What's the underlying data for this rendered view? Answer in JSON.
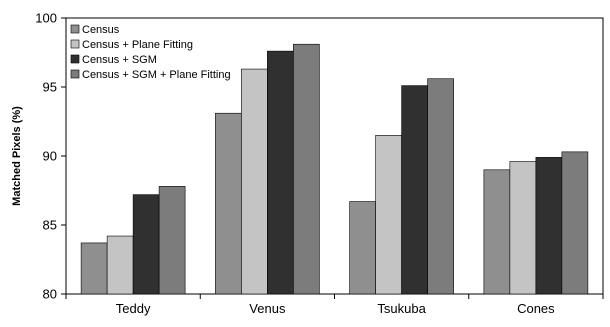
{
  "chart_data": {
    "type": "bar",
    "title": "",
    "xlabel": "",
    "ylabel": "Matched Pixels (%)",
    "ylim": [
      80,
      100
    ],
    "yticks": [
      80,
      85,
      90,
      95,
      100
    ],
    "grid": false,
    "legend_position": "top-left",
    "categories": [
      "Teddy",
      "Venus",
      "Tsukuba",
      "Cones"
    ],
    "series": [
      {
        "name": "Census",
        "color": "#8f8f8f",
        "values": [
          83.7,
          93.1,
          86.7,
          89.0
        ]
      },
      {
        "name": "Census + Plane Fitting",
        "color": "#c4c4c4",
        "values": [
          84.2,
          96.3,
          91.5,
          89.6
        ]
      },
      {
        "name": "Census + SGM",
        "color": "#303030",
        "values": [
          87.2,
          97.6,
          95.1,
          89.9
        ]
      },
      {
        "name": "Census + SGM + Plane Fitting",
        "color": "#7c7c7c",
        "values": [
          87.8,
          98.1,
          95.6,
          90.3
        ]
      }
    ]
  }
}
